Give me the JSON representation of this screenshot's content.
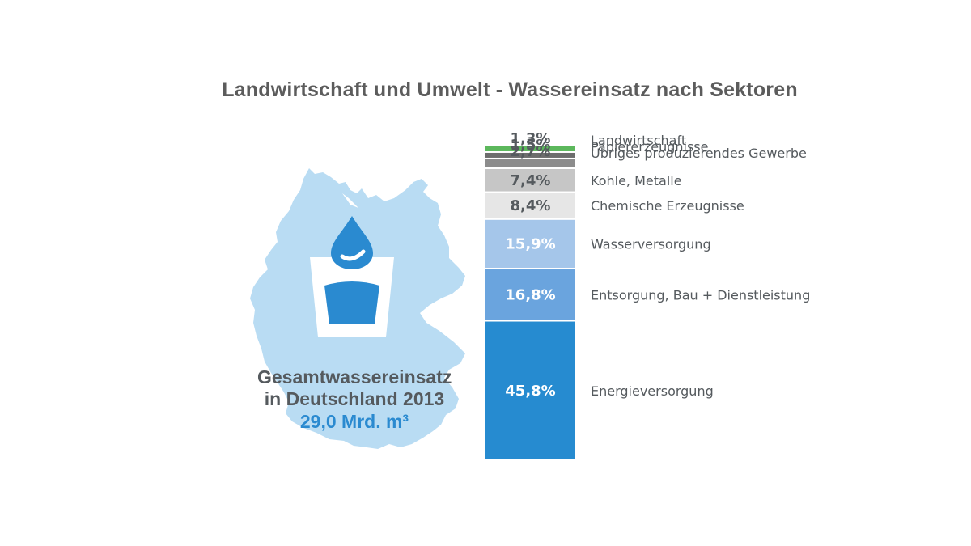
{
  "title": "Landwirtschaft und Umwelt - Wassereinsatz nach Sektoren",
  "total": {
    "line1": "Gesamtwassereinsatz",
    "line2": "in Deutschland 2013",
    "value": "29,0 Mrd. m³"
  },
  "icons": {
    "map": "germany-map-icon",
    "drop": "water-drop-icon",
    "glass": "water-glass-icon"
  },
  "colors": {
    "map": "#b9dcf3",
    "drop": "#2a8ad0",
    "text_dark": "#555a5e",
    "text_blue": "#2a8ad0"
  },
  "chart_data": {
    "type": "bar",
    "stacked": true,
    "unit": "%",
    "categories": [
      "Landwirtschaft",
      "Papiererzeugnisse",
      "Übriges produzierendes Gewerbe",
      "Kohle, Metalle",
      "Chemische Erzeugnisse",
      "Wasserversorgung",
      "Entsorgung, Bau + Dienstleistung",
      "Energieversorgung"
    ],
    "values": [
      1.3,
      1.5,
      2.7,
      7.4,
      8.4,
      15.9,
      16.8,
      45.8
    ],
    "value_labels": [
      "1,3%",
      "1,5%",
      "2,7%",
      "7,4%",
      "8,4%",
      "15,9%",
      "16,8%",
      "45,8%"
    ],
    "colors": [
      "#5cb85c",
      "#6d6d6d",
      "#8c8c8c",
      "#c6c6c6",
      "#e6e6e6",
      "#a5c6ea",
      "#6aa4de",
      "#268bd0"
    ],
    "label_colors": [
      "#555a5e",
      "#555a5e",
      "#555a5e",
      "#555a5e",
      "#555a5e",
      "#ffffff",
      "#ffffff",
      "#ffffff"
    ]
  }
}
